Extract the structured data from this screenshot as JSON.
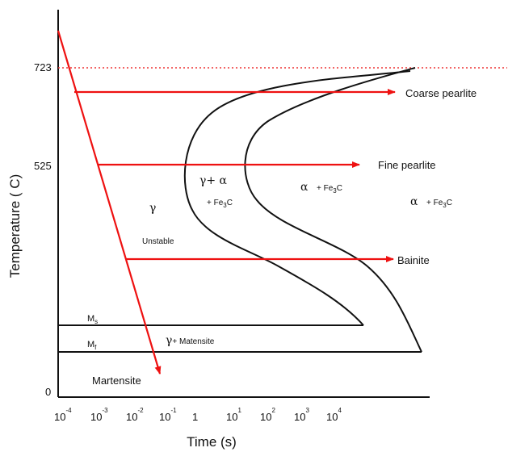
{
  "axes": {
    "y_label": "Temperature ( C)",
    "x_label": "Time (s)",
    "y_ticks": [
      "723",
      "525",
      "0"
    ],
    "x_ticks": [
      {
        "base": "10",
        "exp": "-4"
      },
      {
        "base": "10",
        "exp": "-3"
      },
      {
        "base": "10",
        "exp": "-2"
      },
      {
        "base": "10",
        "exp": "-1"
      },
      {
        "base": "1",
        "exp": ""
      },
      {
        "base": "10",
        "exp": "1"
      },
      {
        "base": "10",
        "exp": "2"
      },
      {
        "base": "10",
        "exp": "3"
      },
      {
        "base": "10",
        "exp": "4"
      }
    ]
  },
  "lines": {
    "ms_label": {
      "main": "M",
      "sub": "s"
    },
    "mf_label": {
      "main": "M",
      "sub": "f"
    }
  },
  "products": {
    "coarse": "Coarse pearlite",
    "fine": "Fine pearlite",
    "bainite": "Bainite",
    "martensite": "Martensite"
  },
  "regions": {
    "gamma": "γ",
    "unstable": "Unstable",
    "gamma_alpha": "γ+ α",
    "fe3c_plus": "+ Fe",
    "fe3c_c": "C",
    "fe3c_sub": "3",
    "alpha": "α",
    "alpha_fe3c": "+ Fe",
    "gamma_martensite_gamma": "γ",
    "gamma_martensite_text": "+ Matensite"
  },
  "colors": {
    "arrow": "#ee1111",
    "curve": "#111111",
    "dotted": "#ee3333"
  }
}
